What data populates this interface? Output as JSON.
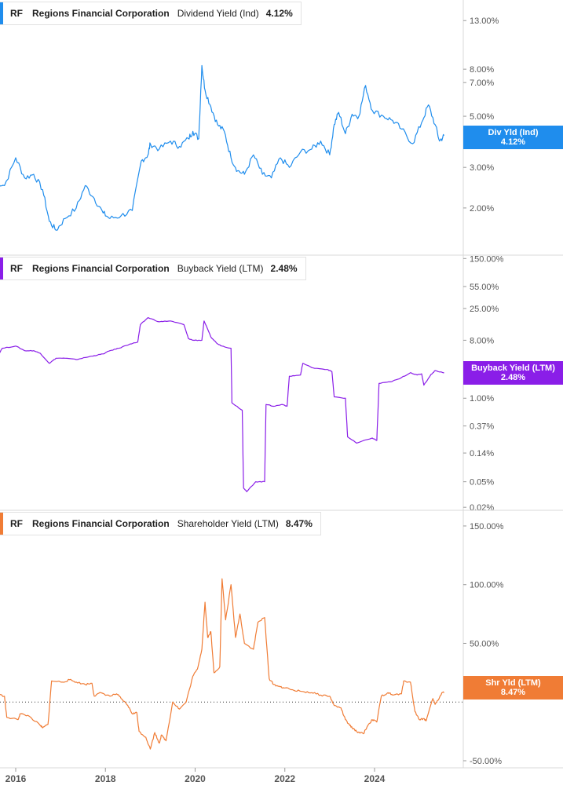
{
  "colors": {
    "dividend": "#1f8ded",
    "buyback": "#8a1ee8",
    "shareholder": "#f07c35",
    "grid": "#d9d9d9",
    "axis_text": "#555555"
  },
  "x_axis": {
    "ticks": [
      "2016",
      "2018",
      "2020",
      "2022",
      "2024"
    ]
  },
  "chart_data": [
    {
      "type": "line",
      "legend": {
        "ticker": "RF",
        "company": "Regions Financial Corporation",
        "metric": "Dividend Yield (Ind)",
        "value": "4.12%"
      },
      "badge": {
        "line1": "Div Yld (Ind)",
        "line2": "4.12%"
      },
      "y_scale": "log",
      "y_ticks": [
        {
          "label": "13.00%",
          "value": 13
        },
        {
          "label": "8.00%",
          "value": 8
        },
        {
          "label": "7.00%",
          "value": 7
        },
        {
          "label": "5.00%",
          "value": 5
        },
        {
          "label": "3.00%",
          "value": 3
        },
        {
          "label": "2.00%",
          "value": 2
        }
      ],
      "ylim": [
        1.35,
        15
      ],
      "x": [
        2015.55,
        2015.75,
        2016.0,
        2016.2,
        2016.4,
        2016.6,
        2016.75,
        2016.9,
        2017.1,
        2017.35,
        2017.55,
        2017.75,
        2017.95,
        2018.1,
        2018.35,
        2018.6,
        2018.8,
        2018.95,
        2019.0,
        2019.2,
        2019.45,
        2019.65,
        2019.85,
        2019.95,
        2020.08,
        2020.15,
        2020.22,
        2020.35,
        2020.5,
        2020.65,
        2020.8,
        2020.95,
        2021.1,
        2021.3,
        2021.5,
        2021.7,
        2021.9,
        2022.1,
        2022.35,
        2022.6,
        2022.8,
        2023.0,
        2023.1,
        2023.2,
        2023.35,
        2023.5,
        2023.65,
        2023.8,
        2023.95,
        2024.2,
        2024.4,
        2024.6,
        2024.85,
        2025.05,
        2025.2,
        2025.35,
        2025.45,
        2025.55
      ],
      "values": [
        2.6,
        2.5,
        3.3,
        2.7,
        2.8,
        2.4,
        1.75,
        1.6,
        1.8,
        2.0,
        2.5,
        2.2,
        1.9,
        1.8,
        1.85,
        1.95,
        3.2,
        3.4,
        3.8,
        3.6,
        3.9,
        3.7,
        4.0,
        4.3,
        4.0,
        8.3,
        6.5,
        5.5,
        4.6,
        4.3,
        3.3,
        2.9,
        2.8,
        3.4,
        2.8,
        2.7,
        3.3,
        3.0,
        3.5,
        3.6,
        3.9,
        3.4,
        4.6,
        5.2,
        4.2,
        5.1,
        5.0,
        6.8,
        5.3,
        5.0,
        4.8,
        4.4,
        3.8,
        4.7,
        5.6,
        4.6,
        3.9,
        4.12
      ]
    },
    {
      "type": "line",
      "legend": {
        "ticker": "RF",
        "company": "Regions Financial Corporation",
        "metric": "Buyback Yield (LTM)",
        "value": "2.48%"
      },
      "badge": {
        "line1": "Buyback Yield (LTM)",
        "line2": "2.48%"
      },
      "y_scale": "log",
      "y_ticks": [
        {
          "label": "150.00%",
          "value": 150
        },
        {
          "label": "55.00%",
          "value": 55
        },
        {
          "label": "25.00%",
          "value": 25
        },
        {
          "label": "8.00%",
          "value": 8
        },
        {
          "label": "1.00%",
          "value": 1
        },
        {
          "label": "0.37%",
          "value": 0.37
        },
        {
          "label": "0.14%",
          "value": 0.14
        },
        {
          "label": "0.05%",
          "value": 0.05
        },
        {
          "label": "0.02%",
          "value": 0.02
        }
      ],
      "ylim": [
        0.019,
        160
      ],
      "x": [
        2015.55,
        2015.7,
        2016.0,
        2016.2,
        2016.4,
        2016.55,
        2016.75,
        2016.9,
        2017.1,
        2017.35,
        2017.55,
        2017.75,
        2017.95,
        2018.1,
        2018.3,
        2018.55,
        2018.72,
        2018.78,
        2018.95,
        2019.2,
        2019.45,
        2019.75,
        2019.85,
        2019.95,
        2020.15,
        2020.2,
        2020.35,
        2020.5,
        2020.6,
        2020.8,
        2020.82,
        2021.05,
        2021.08,
        2021.15,
        2021.35,
        2021.55,
        2021.58,
        2021.75,
        2021.95,
        2022.05,
        2022.1,
        2022.35,
        2022.4,
        2022.6,
        2022.95,
        2023.05,
        2023.1,
        2023.35,
        2023.4,
        2023.6,
        2023.95,
        2024.05,
        2024.1,
        2024.35,
        2024.55,
        2024.8,
        2024.95,
        2025.05,
        2025.1,
        2025.25,
        2025.35,
        2025.55
      ],
      "values": [
        4.0,
        6.0,
        6.5,
        5.5,
        5.5,
        5.0,
        3.5,
        4.2,
        4.2,
        4.0,
        4.3,
        4.6,
        4.9,
        5.5,
        6.0,
        7.0,
        7.5,
        14.0,
        18.0,
        15.5,
        16.0,
        14.0,
        8.5,
        8.0,
        8.0,
        16.0,
        9.0,
        7.0,
        6.5,
        6.0,
        0.85,
        0.65,
        0.04,
        0.035,
        0.05,
        0.05,
        0.8,
        0.75,
        0.8,
        0.75,
        2.2,
        2.3,
        3.5,
        3.0,
        2.8,
        2.6,
        1.05,
        1.0,
        0.25,
        0.2,
        0.24,
        0.22,
        1.7,
        1.8,
        2.0,
        2.5,
        2.3,
        2.4,
        1.6,
        2.3,
        2.7,
        2.48
      ]
    },
    {
      "type": "line",
      "legend": {
        "ticker": "RF",
        "company": "Regions Financial Corporation",
        "metric": "Shareholder Yield (LTM)",
        "value": "8.47%"
      },
      "badge": {
        "line1": "Shr Yld (LTM)",
        "line2": "8.47%"
      },
      "y_scale": "linear",
      "y_ticks": [
        {
          "label": "150.00%",
          "value": 150
        },
        {
          "label": "100.00%",
          "value": 100
        },
        {
          "label": "50.00%",
          "value": 50
        },
        {
          "label": "-50.00%",
          "value": -50
        }
      ],
      "reference_line": 0,
      "ylim": [
        -52,
        160
      ],
      "x": [
        2015.55,
        2015.75,
        2015.8,
        2016.05,
        2016.1,
        2016.3,
        2016.55,
        2016.6,
        2016.72,
        2016.8,
        2017.05,
        2017.2,
        2017.35,
        2017.55,
        2017.7,
        2017.75,
        2017.9,
        2018.1,
        2018.25,
        2018.35,
        2018.5,
        2018.6,
        2018.7,
        2018.75,
        2018.9,
        2019.0,
        2019.1,
        2019.2,
        2019.25,
        2019.35,
        2019.5,
        2019.65,
        2019.8,
        2019.95,
        2020.05,
        2020.15,
        2020.22,
        2020.28,
        2020.35,
        2020.42,
        2020.55,
        2020.6,
        2020.68,
        2020.8,
        2020.9,
        2021.0,
        2021.1,
        2021.3,
        2021.4,
        2021.55,
        2021.65,
        2021.75,
        2021.9,
        2022.0,
        2022.2,
        2022.4,
        2022.6,
        2022.8,
        2023.0,
        2023.1,
        2023.25,
        2023.35,
        2023.45,
        2023.5,
        2023.6,
        2023.75,
        2023.85,
        2023.95,
        2024.05,
        2024.15,
        2024.3,
        2024.4,
        2024.6,
        2024.65,
        2024.8,
        2024.9,
        2025.0,
        2025.1,
        2025.15,
        2025.3,
        2025.35,
        2025.45,
        2025.5,
        2025.55
      ],
      "values": [
        7,
        5,
        -13,
        -15,
        -10,
        -12,
        -20,
        -22,
        -19,
        18,
        17,
        19,
        17,
        15,
        16,
        5,
        8,
        5,
        7,
        3,
        -3,
        -10,
        -9,
        -25,
        -30,
        -40,
        -26,
        -35,
        -28,
        -33,
        0,
        -6,
        0,
        22,
        28,
        45,
        85,
        55,
        60,
        25,
        30,
        105,
        70,
        100,
        55,
        75,
        50,
        45,
        68,
        72,
        20,
        15,
        13,
        12,
        10,
        9,
        8,
        6,
        5,
        -3,
        -5,
        -15,
        -20,
        -22,
        -25,
        -27,
        -20,
        -15,
        -17,
        5,
        8,
        6,
        7,
        18,
        17,
        -8,
        -15,
        -14,
        -16,
        3,
        -2,
        4,
        8,
        8.47
      ]
    }
  ]
}
